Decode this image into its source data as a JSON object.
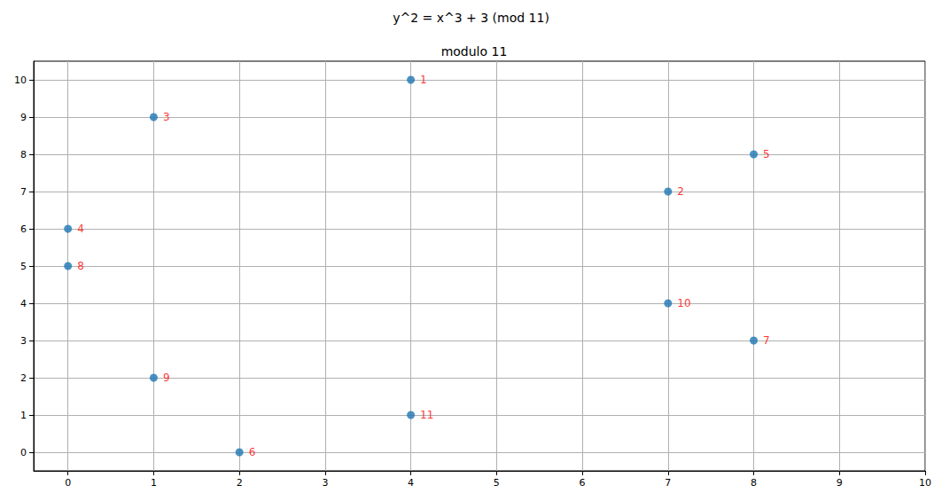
{
  "chart_data": {
    "type": "scatter",
    "title": "y^2 = x^3 + 3 (mod 11)",
    "subtitle": "modulo 11",
    "x": [
      4,
      7,
      1,
      0,
      8,
      2,
      8,
      0,
      1,
      7,
      4
    ],
    "y": [
      10,
      7,
      9,
      6,
      8,
      0,
      3,
      5,
      2,
      4,
      1
    ],
    "labels": [
      "1",
      "2",
      "3",
      "4",
      "5",
      "6",
      "7",
      "8",
      "9",
      "10",
      "11"
    ],
    "color": "#1f77b4",
    "marker": "circle",
    "xlim": [
      -0.4,
      10
    ],
    "xticks": [
      0,
      1,
      2,
      3,
      4,
      5,
      6,
      7,
      8,
      9,
      10
    ],
    "ylim": [
      -0.5,
      10.5
    ],
    "yticks": [
      0,
      1,
      2,
      3,
      4,
      5,
      6,
      7,
      8,
      9,
      10
    ],
    "grid": true
  }
}
